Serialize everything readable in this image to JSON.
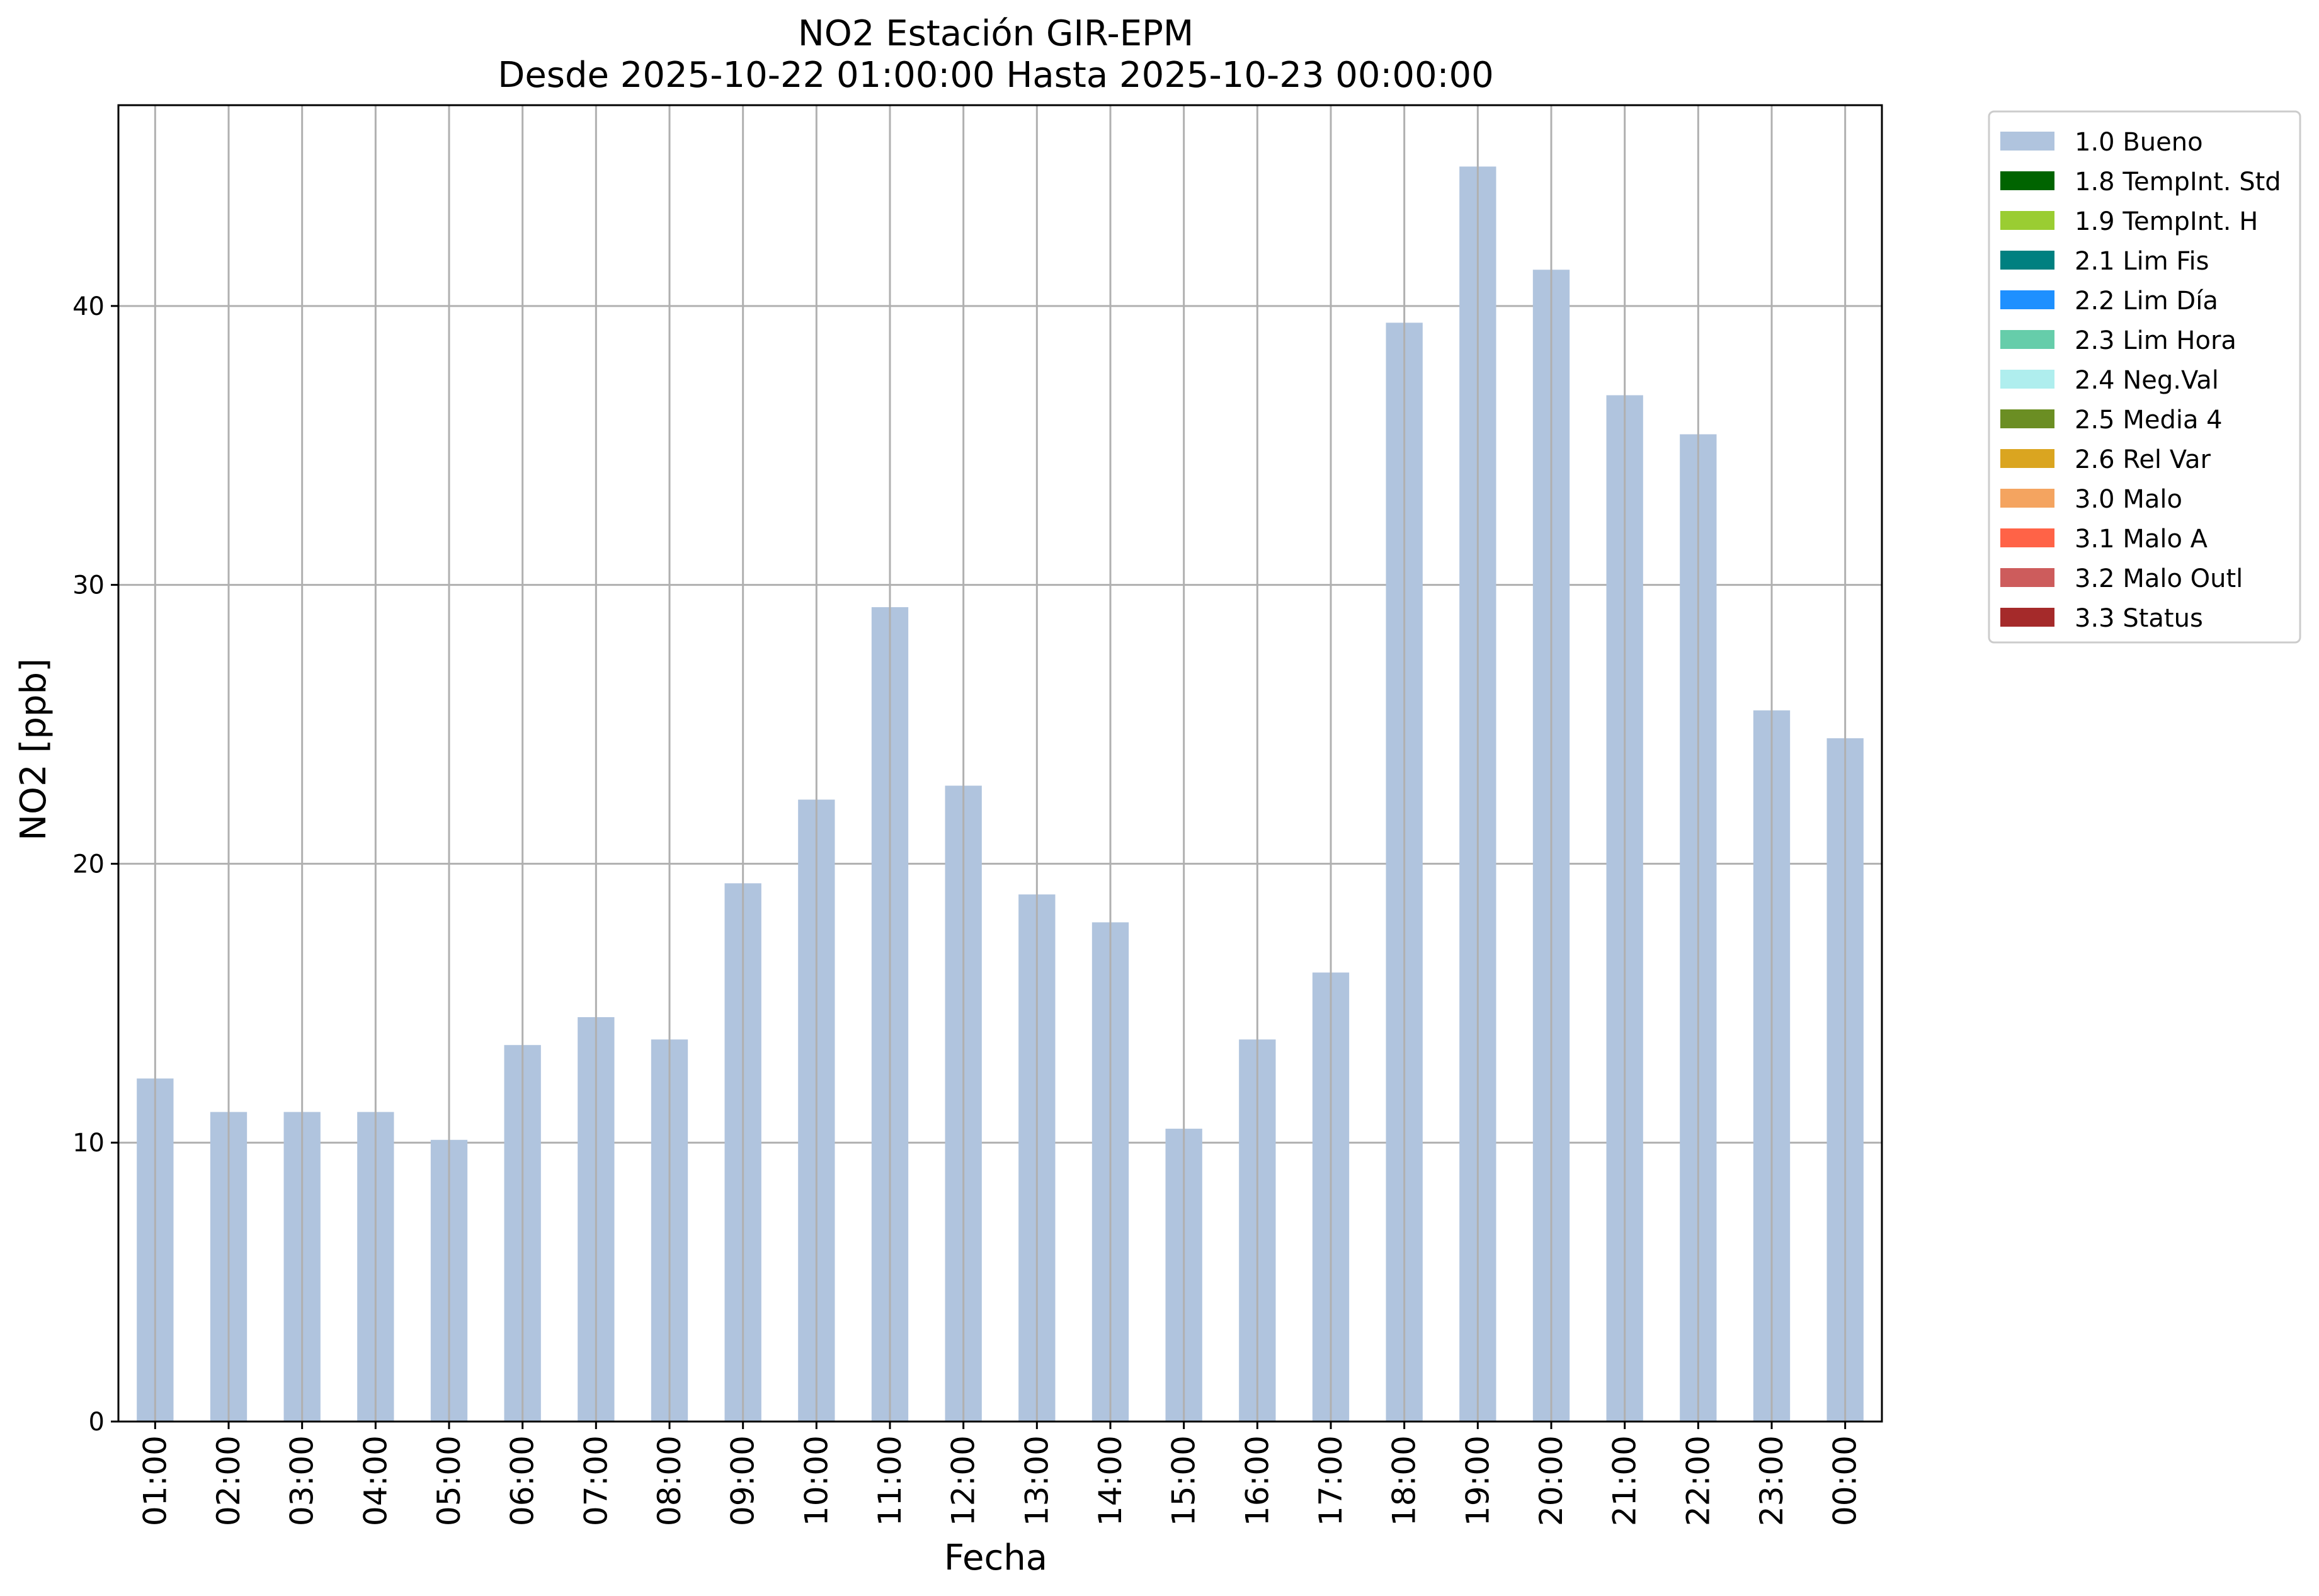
{
  "chart_data": {
    "type": "bar",
    "title": "NO2 Estación GIR-EPM",
    "subtitle": "Desde 2025-10-22 01:00:00 Hasta 2025-10-23 00:00:00",
    "xlabel": "Fecha",
    "ylabel": "NO2 [ppb]",
    "ylim": [
      0,
      47.2
    ],
    "yticks": [
      0,
      10,
      20,
      30,
      40
    ],
    "grid": true,
    "legend_position": "outside right, top",
    "categories": [
      "01:00",
      "02:00",
      "03:00",
      "04:00",
      "05:00",
      "06:00",
      "07:00",
      "08:00",
      "09:00",
      "10:00",
      "11:00",
      "12:00",
      "13:00",
      "14:00",
      "15:00",
      "16:00",
      "17:00",
      "18:00",
      "19:00",
      "20:00",
      "21:00",
      "22:00",
      "23:00",
      "00:00"
    ],
    "series": [
      {
        "name": "1.0 Bueno",
        "color": "#b0c4de",
        "values": [
          12.3,
          11.1,
          11.1,
          11.1,
          10.1,
          13.5,
          14.5,
          13.7,
          19.3,
          22.3,
          29.2,
          22.8,
          18.9,
          17.9,
          10.5,
          13.7,
          16.1,
          39.4,
          45.0,
          41.3,
          36.8,
          35.4,
          25.5,
          24.5
        ]
      }
    ],
    "legend": [
      {
        "label": "1.0 Bueno",
        "color": "#b0c4de"
      },
      {
        "label": "1.8 TempInt. Std",
        "color": "#006400"
      },
      {
        "label": "1.9 TempInt. H",
        "color": "#9acd32"
      },
      {
        "label": "2.1 Lim Fis",
        "color": "#008080"
      },
      {
        "label": "2.2 Lim Día",
        "color": "#1e90ff"
      },
      {
        "label": "2.3 Lim Hora",
        "color": "#66cdaa"
      },
      {
        "label": "2.4 Neg.Val",
        "color": "#afeeee"
      },
      {
        "label": "2.5 Media 4",
        "color": "#6b8e23"
      },
      {
        "label": "2.6 Rel Var",
        "color": "#daa520"
      },
      {
        "label": "3.0 Malo",
        "color": "#f4a460"
      },
      {
        "label": "3.1 Malo A",
        "color": "#ff6347"
      },
      {
        "label": "3.2 Malo Outl",
        "color": "#cd5c5c"
      },
      {
        "label": "3.3 Status",
        "color": "#a52a2a"
      }
    ]
  }
}
